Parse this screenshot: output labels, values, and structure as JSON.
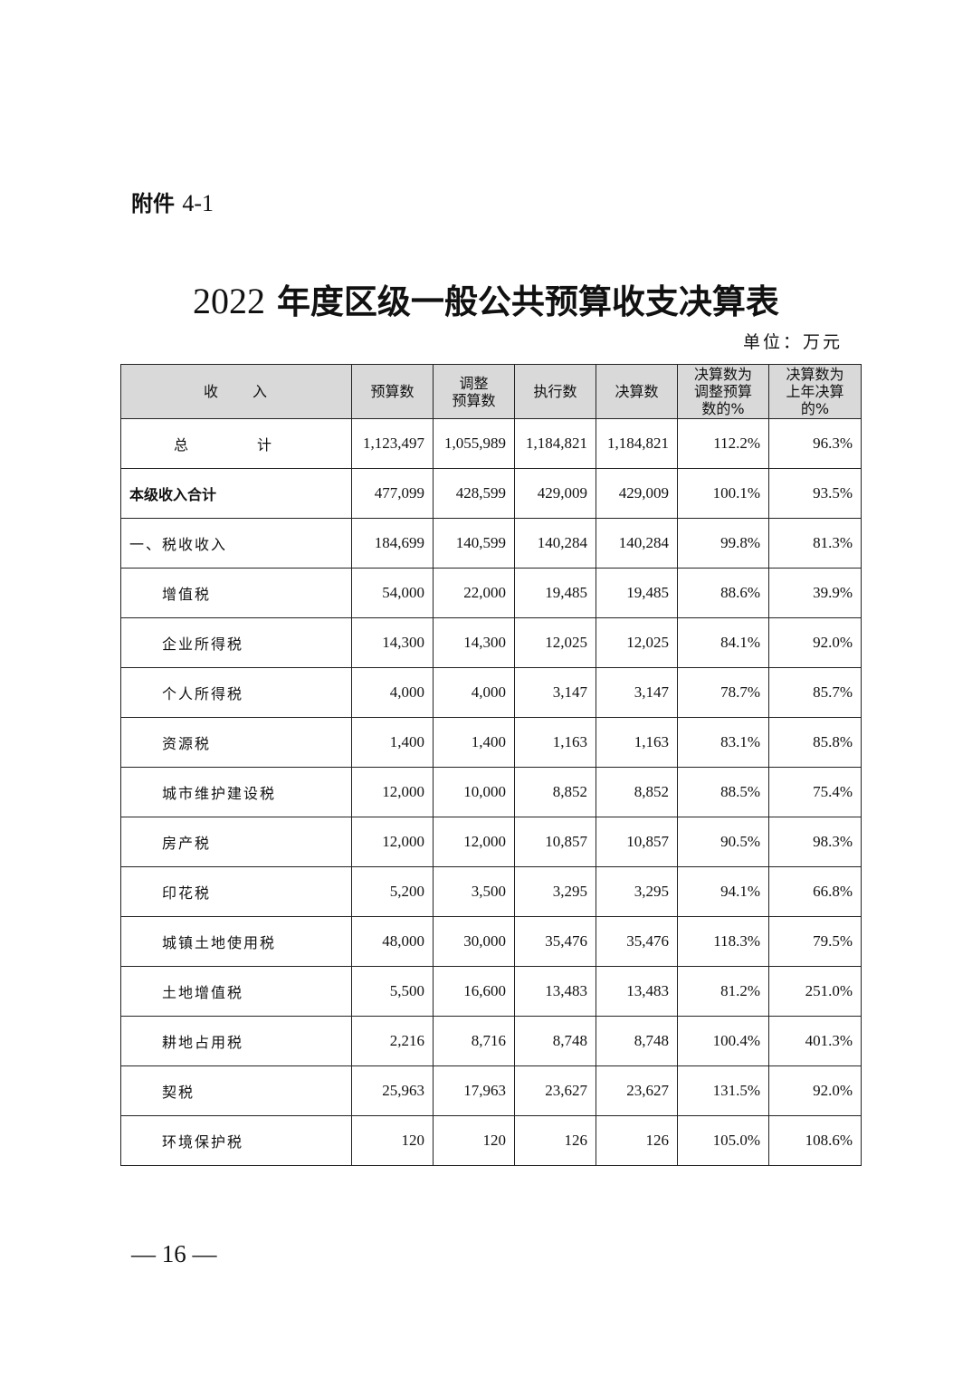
{
  "attachment": {
    "prefix": "附件",
    "number": "4-1"
  },
  "title": {
    "year": "2022",
    "text": "年度区级一般公共预算收支决算表"
  },
  "unit": "单位：万元",
  "table": {
    "headers": [
      "收　　入",
      "预算数",
      "调整\n预算数",
      "执行数",
      "决算数",
      "决算数为\n调整预算\n数的%",
      "决算数为\n上年决算\n的%"
    ],
    "rows": [
      {
        "label": "总　计",
        "style": "total",
        "values": [
          "1,123,497",
          "1,055,989",
          "1,184,821",
          "1,184,821",
          "112.2%",
          "96.3%"
        ]
      },
      {
        "label": "本级收入合计",
        "style": "bold",
        "values": [
          "477,099",
          "428,599",
          "429,009",
          "429,009",
          "100.1%",
          "93.5%"
        ]
      },
      {
        "label": "一、税收收入",
        "style": "cat",
        "values": [
          "184,699",
          "140,599",
          "140,284",
          "140,284",
          "99.8%",
          "81.3%"
        ]
      },
      {
        "label": "增值税",
        "style": "sub",
        "values": [
          "54,000",
          "22,000",
          "19,485",
          "19,485",
          "88.6%",
          "39.9%"
        ]
      },
      {
        "label": "企业所得税",
        "style": "sub",
        "values": [
          "14,300",
          "14,300",
          "12,025",
          "12,025",
          "84.1%",
          "92.0%"
        ]
      },
      {
        "label": "个人所得税",
        "style": "sub",
        "values": [
          "4,000",
          "4,000",
          "3,147",
          "3,147",
          "78.7%",
          "85.7%"
        ]
      },
      {
        "label": "资源税",
        "style": "sub",
        "values": [
          "1,400",
          "1,400",
          "1,163",
          "1,163",
          "83.1%",
          "85.8%"
        ]
      },
      {
        "label": "城市维护建设税",
        "style": "sub",
        "values": [
          "12,000",
          "10,000",
          "8,852",
          "8,852",
          "88.5%",
          "75.4%"
        ]
      },
      {
        "label": "房产税",
        "style": "sub",
        "values": [
          "12,000",
          "12,000",
          "10,857",
          "10,857",
          "90.5%",
          "98.3%"
        ]
      },
      {
        "label": "印花税",
        "style": "sub",
        "values": [
          "5,200",
          "3,500",
          "3,295",
          "3,295",
          "94.1%",
          "66.8%"
        ]
      },
      {
        "label": "城镇土地使用税",
        "style": "sub",
        "values": [
          "48,000",
          "30,000",
          "35,476",
          "35,476",
          "118.3%",
          "79.5%"
        ]
      },
      {
        "label": "土地增值税",
        "style": "sub",
        "values": [
          "5,500",
          "16,600",
          "13,483",
          "13,483",
          "81.2%",
          "251.0%"
        ]
      },
      {
        "label": "耕地占用税",
        "style": "sub",
        "values": [
          "2,216",
          "8,716",
          "8,748",
          "8,748",
          "100.4%",
          "401.3%"
        ]
      },
      {
        "label": "契税",
        "style": "sub",
        "values": [
          "25,963",
          "17,963",
          "23,627",
          "23,627",
          "131.5%",
          "92.0%"
        ]
      },
      {
        "label": "环境保护税",
        "style": "sub",
        "values": [
          "120",
          "120",
          "126",
          "126",
          "105.0%",
          "108.6%"
        ]
      }
    ]
  },
  "page_number": "— 16 —"
}
